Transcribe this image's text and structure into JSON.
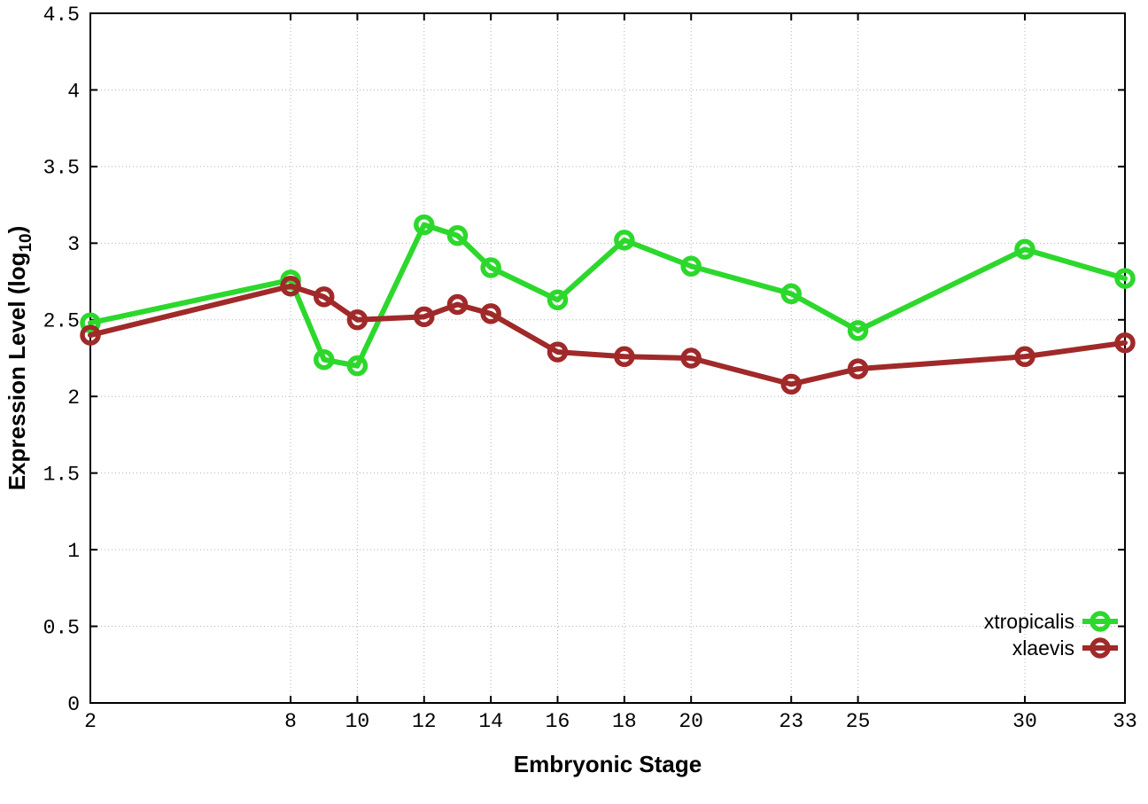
{
  "colors": {
    "background": "#ffffff",
    "border": "#000000",
    "grid": "#b3b3b3",
    "tick_text": "#000000",
    "xtropicalis": "#2cd82c",
    "xlaevis": "#a02929"
  },
  "chart_data": {
    "type": "line",
    "title": "",
    "xlabel": "Embryonic Stage",
    "ylabel": "Expression Level (log10)",
    "ylabel_parts": {
      "prefix": "Expression Level (log",
      "subscript": "10",
      "suffix": ")"
    },
    "xlim": [
      2,
      33
    ],
    "ylim": [
      0,
      4.5
    ],
    "x_ticks": [
      2,
      8,
      10,
      12,
      14,
      16,
      18,
      20,
      23,
      25,
      30,
      33
    ],
    "y_ticks": [
      0,
      0.5,
      1,
      1.5,
      2,
      2.5,
      3,
      3.5,
      4,
      4.5
    ],
    "grid": true,
    "legend_position": "bottom-right-inside",
    "marker": "open-circle",
    "series": [
      {
        "name": "xtropicalis",
        "color": "#2cd82c",
        "x": [
          2,
          8,
          9,
          10,
          12,
          13,
          14,
          16,
          18,
          20,
          23,
          25,
          30,
          33
        ],
        "y": [
          2.48,
          2.76,
          2.24,
          2.2,
          3.12,
          3.05,
          2.84,
          2.63,
          3.02,
          2.85,
          2.67,
          2.43,
          2.96,
          2.77
        ]
      },
      {
        "name": "xlaevis",
        "color": "#a02929",
        "x": [
          2,
          8,
          9,
          10,
          12,
          13,
          14,
          16,
          18,
          20,
          23,
          25,
          30,
          33
        ],
        "y": [
          2.4,
          2.72,
          2.65,
          2.5,
          2.52,
          2.6,
          2.54,
          2.29,
          2.26,
          2.25,
          2.08,
          2.18,
          2.26,
          2.35
        ]
      }
    ]
  }
}
